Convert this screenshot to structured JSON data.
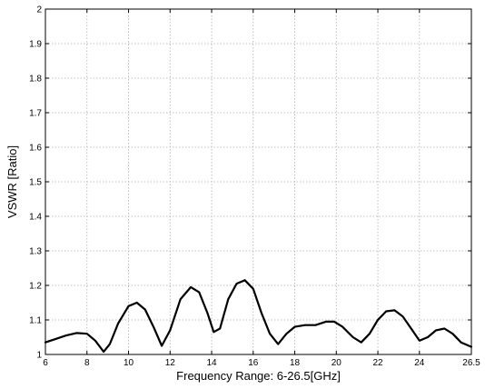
{
  "chart_data": {
    "type": "line",
    "title": "",
    "xlabel": "Frequency Range: 6-26.5[GHz]",
    "ylabel": "VSWR [Ratio]",
    "xlim": [
      6,
      26.5
    ],
    "ylim": [
      1,
      2
    ],
    "xticks": [
      6,
      8,
      10,
      12,
      14,
      16,
      18,
      20,
      22,
      24,
      26.5
    ],
    "xtick_labels": [
      "6",
      "8",
      "10",
      "12",
      "14",
      "16",
      "18",
      "20",
      "22",
      "24",
      "26.5"
    ],
    "yticks": [
      1,
      1.1,
      1.2,
      1.3,
      1.4,
      1.5,
      1.6,
      1.7,
      1.8,
      1.9,
      2
    ],
    "ytick_labels": [
      "1",
      "1.1",
      "1.2",
      "1.3",
      "1.4",
      "1.5",
      "1.6",
      "1.7",
      "1.8",
      "1.9",
      "2"
    ],
    "grid": true,
    "line_color": "#000000",
    "series": [
      {
        "x": [
          6.0,
          6.5,
          7.0,
          7.5,
          8.0,
          8.4,
          8.8,
          9.1,
          9.5,
          10.0,
          10.4,
          10.8,
          11.2,
          11.6,
          12.0,
          12.5,
          13.0,
          13.4,
          13.8,
          14.1,
          14.4,
          14.8,
          15.2,
          15.6,
          16.0,
          16.4,
          16.8,
          17.2,
          17.6,
          18.0,
          18.5,
          19.0,
          19.5,
          19.9,
          20.3,
          20.8,
          21.2,
          21.6,
          22.0,
          22.4,
          22.8,
          23.2,
          23.6,
          24.0,
          24.4,
          24.8,
          25.2,
          25.6,
          26.0,
          26.5
        ],
        "y": [
          1.035,
          1.045,
          1.055,
          1.062,
          1.06,
          1.04,
          1.008,
          1.03,
          1.09,
          1.14,
          1.15,
          1.13,
          1.08,
          1.025,
          1.07,
          1.16,
          1.195,
          1.18,
          1.12,
          1.065,
          1.075,
          1.16,
          1.205,
          1.215,
          1.19,
          1.12,
          1.06,
          1.03,
          1.06,
          1.08,
          1.085,
          1.085,
          1.095,
          1.095,
          1.08,
          1.05,
          1.035,
          1.06,
          1.1,
          1.125,
          1.128,
          1.11,
          1.075,
          1.04,
          1.05,
          1.07,
          1.075,
          1.06,
          1.035,
          1.022
        ]
      }
    ]
  }
}
